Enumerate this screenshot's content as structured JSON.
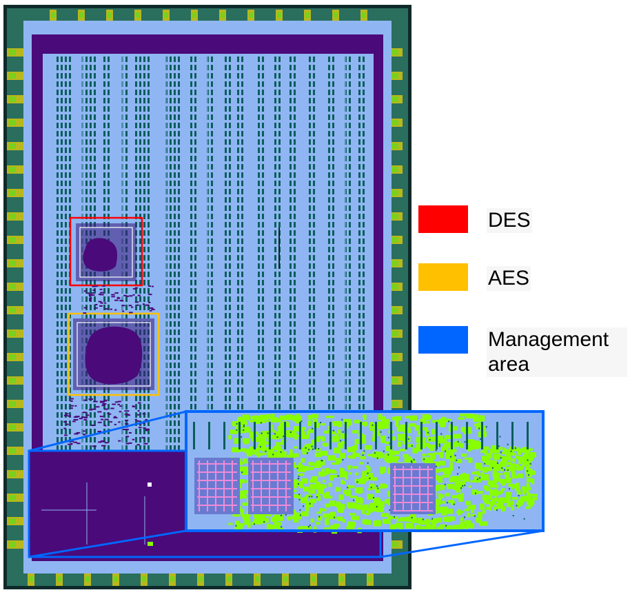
{
  "colors": {
    "die_border": "#0f2a2a",
    "core": "#8fb6f2",
    "purple": "#4a0a7a",
    "teal": "#0b5d5d",
    "pink": "#f08ad8",
    "pad_yellow": "#b8b81c",
    "pad_green": "#7ad01e",
    "bright_green": "#88ff00",
    "des": "#ff0000",
    "aes": "#ffc000",
    "management": "#0066ff"
  },
  "legend": [
    {
      "id": "des",
      "label": "DES",
      "color": "#ff0000"
    },
    {
      "id": "aes",
      "label": "AES",
      "color": "#ffc000"
    },
    {
      "id": "management",
      "label": "Management area",
      "color": "#0066ff"
    }
  ]
}
